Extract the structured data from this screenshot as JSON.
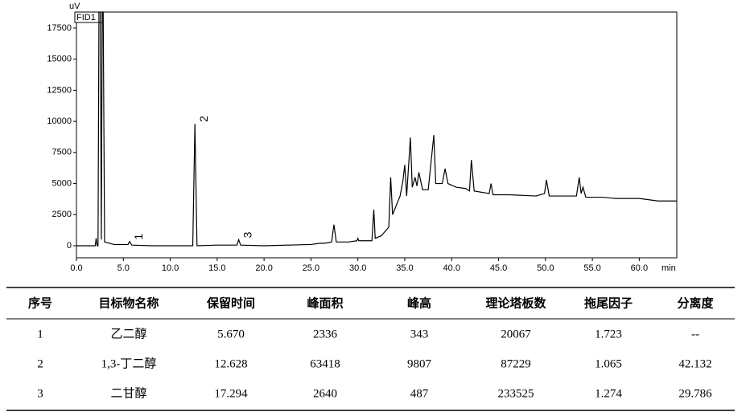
{
  "chart_data": {
    "type": "line",
    "y_label": "uV",
    "x_label": "min",
    "xlim": [
      0,
      64.0
    ],
    "ylim": [
      -970,
      18790
    ],
    "xticks": [
      {
        "value": 0,
        "label": "0.0"
      },
      {
        "value": 5,
        "label": "5.0"
      },
      {
        "value": 10,
        "label": "10.0"
      },
      {
        "value": 15,
        "label": "15.0"
      },
      {
        "value": 20,
        "label": "20.0"
      },
      {
        "value": 25,
        "label": "25.0"
      },
      {
        "value": 30,
        "label": "30.0"
      },
      {
        "value": 35,
        "label": "35.0"
      },
      {
        "value": 40,
        "label": "40.0"
      },
      {
        "value": 45,
        "label": "45.0"
      },
      {
        "value": 50,
        "label": "50.0"
      },
      {
        "value": 55,
        "label": "55.0"
      },
      {
        "value": 60,
        "label": "60.0"
      }
    ],
    "yticks": [
      0,
      2500,
      5000,
      7500,
      10000,
      12500,
      15000,
      17500
    ],
    "grid": false,
    "annotations": [
      "1",
      "2",
      "3"
    ],
    "x": [
      0,
      2.0,
      2.1,
      2.2,
      2.3,
      2.4,
      2.55,
      2.65,
      2.75,
      2.85,
      3.0,
      4.0,
      5.5,
      5.67,
      5.9,
      8.0,
      12.4,
      12.628,
      12.85,
      15.0,
      17.1,
      17.294,
      17.5,
      20.0,
      25.0,
      26.0,
      26.5,
      27.2,
      27.45,
      27.7,
      29.0,
      29.9,
      30.0,
      30.1,
      31.5,
      31.7,
      31.85,
      32.5,
      33.3,
      33.5,
      33.7,
      34.5,
      34.8,
      35.0,
      35.2,
      35.6,
      35.8,
      36.1,
      36.3,
      36.5,
      36.9,
      37.5,
      38.1,
      38.3,
      39.0,
      39.3,
      39.6,
      40.5,
      41.5,
      41.9,
      42.1,
      42.4,
      44.0,
      44.2,
      44.4,
      46.0,
      49.0,
      49.9,
      50.1,
      50.4,
      52.0,
      53.3,
      53.6,
      53.8,
      54.0,
      54.3,
      56.0,
      57.5,
      60.0,
      62.0,
      64.0
    ],
    "series": [
      {
        "name": "FID1",
        "color": "#000000",
        "values": [
          0,
          0,
          600,
          0,
          0,
          18790,
          18790,
          500,
          18790,
          18790,
          300,
          100,
          100,
          343,
          50,
          0,
          0,
          9807,
          0,
          50,
          50,
          487,
          50,
          0,
          100,
          200,
          200,
          300,
          1700,
          300,
          300,
          400,
          600,
          400,
          400,
          2900,
          600,
          800,
          1500,
          5500,
          2500,
          4000,
          5200,
          6500,
          4000,
          8700,
          4700,
          5500,
          4800,
          5900,
          4500,
          4500,
          8900,
          5000,
          5000,
          6200,
          5000,
          4700,
          4600,
          4400,
          6900,
          4400,
          4200,
          5000,
          4100,
          4100,
          4000,
          4200,
          5300,
          4000,
          4000,
          4000,
          5500,
          4200,
          4700,
          3900,
          3900,
          3800,
          3800,
          3600,
          3600
        ]
      }
    ]
  },
  "table": {
    "header": [
      "序号",
      "目标物名称",
      "保留时间",
      "峰面积",
      "峰高",
      "理论塔板数",
      "拖尾因子",
      "分离度"
    ],
    "rows": [
      [
        "1",
        "乙二醇",
        "5.670",
        "2336",
        "343",
        "20067",
        "1.723",
        "--"
      ],
      [
        "2",
        "1,3-丁二醇",
        "12.628",
        "63418",
        "9807",
        "87229",
        "1.065",
        "42.132"
      ],
      [
        "3",
        "二甘醇",
        "17.294",
        "2640",
        "487",
        "233525",
        "1.274",
        "29.786"
      ]
    ]
  }
}
